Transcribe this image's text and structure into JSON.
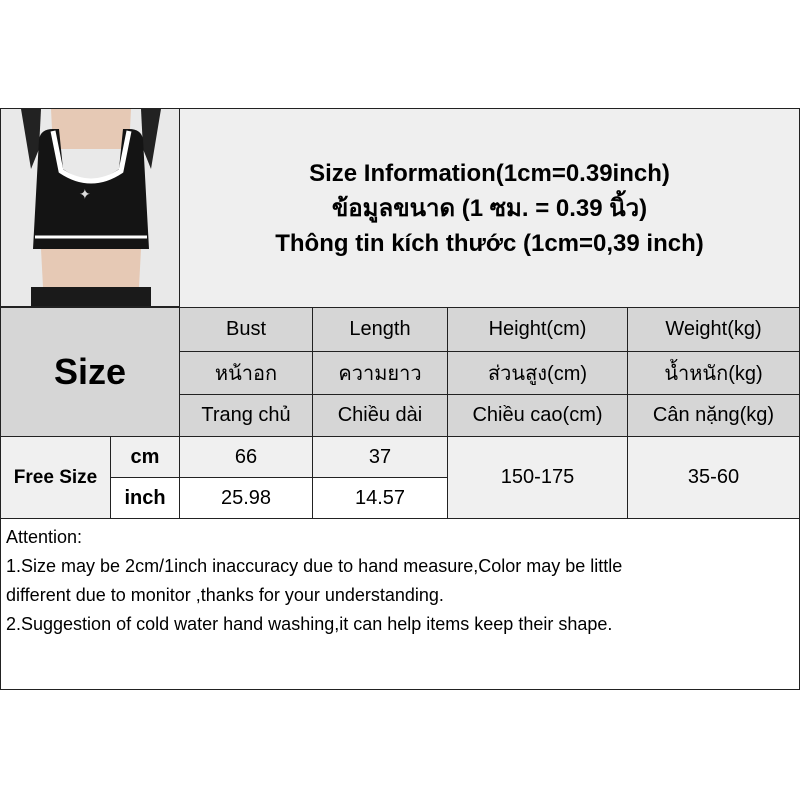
{
  "header": {
    "lines": [
      "Size Information(1cm=0.39inch)",
      "ข้อมูลขนาด (1 ซม. = 0.39 นิ้ว)",
      "Thông tin kích thước (1cm=0,39 inch)"
    ]
  },
  "table": {
    "size_label": "Size",
    "columns": [
      {
        "en": "Bust",
        "th": "หน้าอก",
        "vi": "Trang chủ"
      },
      {
        "en": "Length",
        "th": "ความยาว",
        "vi": "Chiều dài"
      },
      {
        "en": "Height(cm)",
        "th": "ส่วนสูง(cm)",
        "vi": "Chiều cao(cm)"
      },
      {
        "en": "Weight(kg)",
        "th": "น้ำหนัก(kg)",
        "vi": "Cân nặng(kg)"
      }
    ],
    "row": {
      "size": "Free Size",
      "units": [
        "cm",
        "inch"
      ],
      "bust": [
        "66",
        "25.98"
      ],
      "length": [
        "37",
        "14.57"
      ],
      "height": "150-175",
      "weight": "35-60"
    }
  },
  "attention": {
    "lines": [
      "Attention:",
      "1.Size may be 2cm/1inch inaccuracy due to hand measure,Color may be little",
      "different due to monitor ,thanks for your understanding.",
      "2.Suggestion of cold water hand washing,it can help items keep their shape."
    ]
  }
}
